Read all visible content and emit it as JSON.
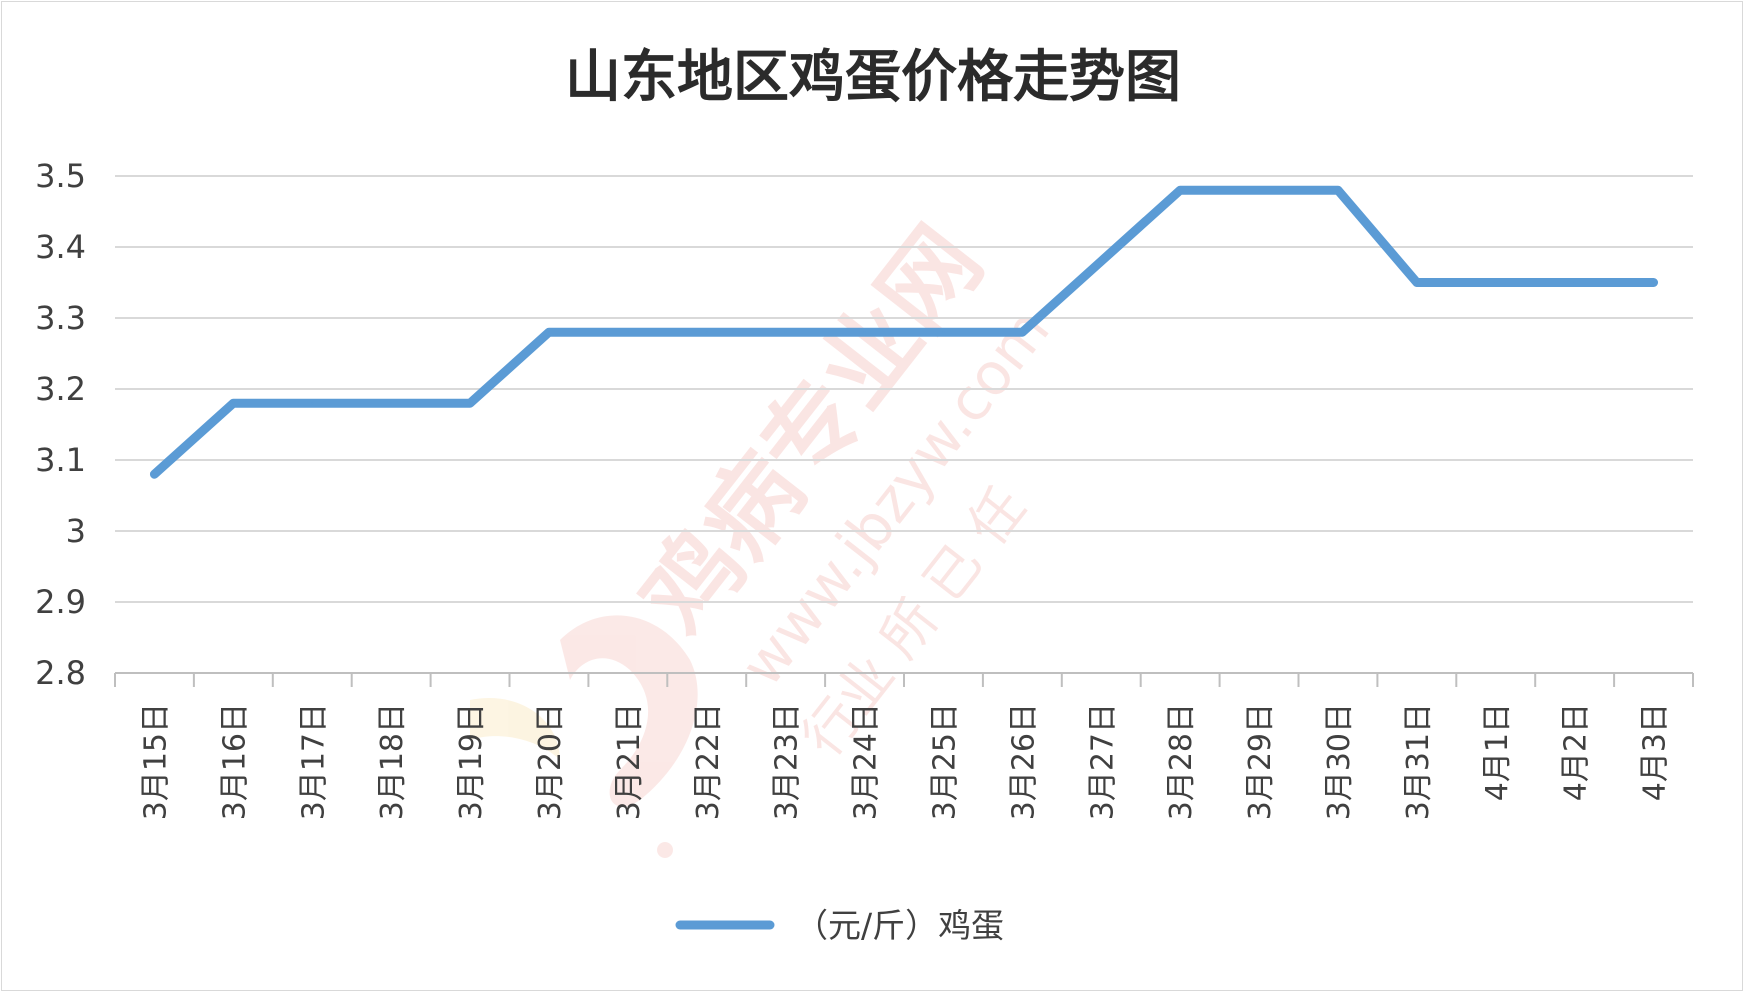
{
  "watermark": {
    "text": "鸡病专业网",
    "url": "www.jbzyw.com",
    "slogan": "行业 所 已 任"
  },
  "colors": {
    "series": "#5b9bd5",
    "grid": "#d9d9d9",
    "text": "#404040",
    "title": "#2b2b2b",
    "watermark": "#e8756b"
  },
  "chart_data": {
    "type": "line",
    "title": "山东地区鸡蛋价格走势图",
    "xlabel": "",
    "ylabel": "",
    "categories": [
      "3月15日",
      "3月16日",
      "3月17日",
      "3月18日",
      "3月19日",
      "3月20日",
      "3月21日",
      "3月22日",
      "3月23日",
      "3月24日",
      "3月25日",
      "3月26日",
      "3月27日",
      "3月28日",
      "3月29日",
      "3月30日",
      "3月31日",
      "4月1日",
      "4月2日",
      "4月3日"
    ],
    "yticks": [
      "2.8",
      "2.9",
      "3",
      "3.1",
      "3.2",
      "3.3",
      "3.4",
      "3.5"
    ],
    "ylim": [
      2.8,
      3.5
    ],
    "grid": true,
    "legend_position": "bottom",
    "series": [
      {
        "name": "（元/斤）鸡蛋",
        "values": [
          3.08,
          3.18,
          3.18,
          3.18,
          3.18,
          3.28,
          3.28,
          3.28,
          3.28,
          3.28,
          3.28,
          3.28,
          3.38,
          3.48,
          3.48,
          3.48,
          3.35,
          3.35,
          3.35,
          3.35
        ]
      }
    ]
  }
}
